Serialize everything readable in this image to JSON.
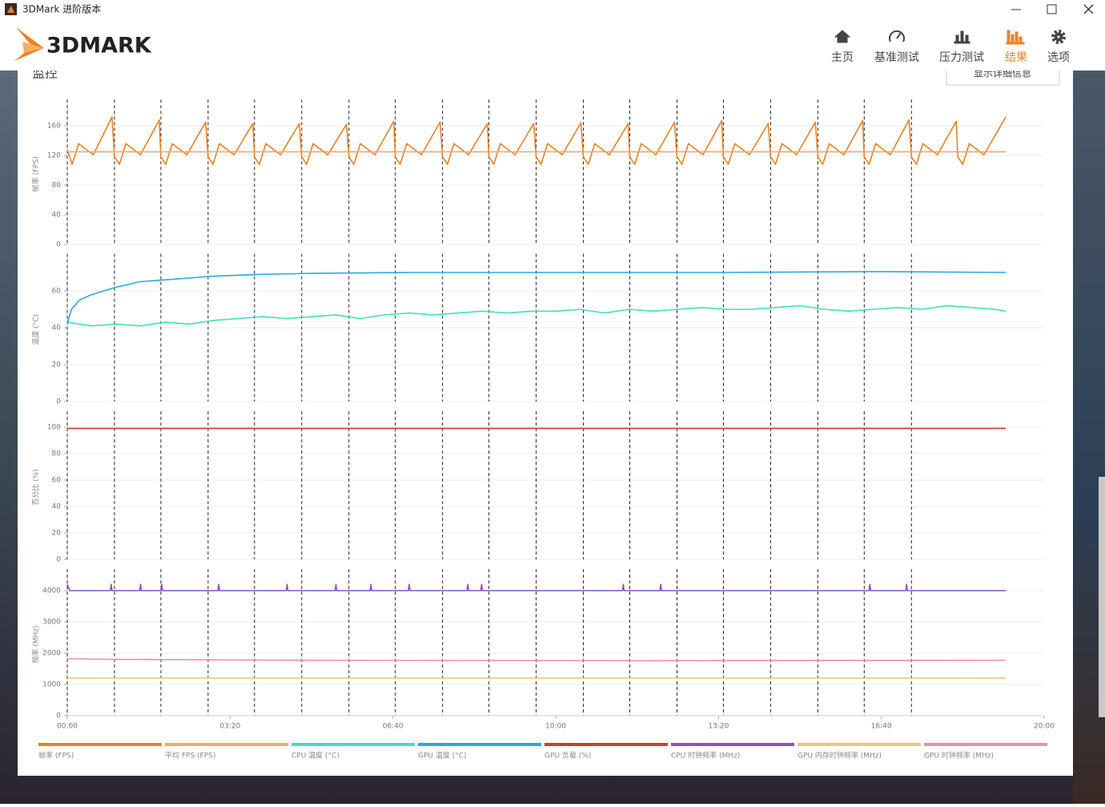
{
  "window": {
    "title": "3DMark 进阶版本"
  },
  "logo": "3DMARK",
  "nav": [
    {
      "label": "主页",
      "active": false
    },
    {
      "label": "基准测试",
      "active": false
    },
    {
      "label": "压力测试",
      "active": false
    },
    {
      "label": "结果",
      "active": true
    },
    {
      "label": "选项",
      "active": false
    }
  ],
  "section": {
    "title": "监控",
    "button": "显示详细信息"
  },
  "events": [
    0,
    58,
    115,
    173,
    230,
    288,
    346,
    403,
    461,
    518,
    576,
    634,
    691,
    749,
    806,
    864,
    922,
    979,
    1037
  ],
  "chart_data": [
    {
      "type": "line",
      "y_label": "帧率 (FPS)",
      "xlim": [
        0,
        1200
      ],
      "ylim": [
        0,
        190
      ],
      "yticks": [
        0,
        40,
        80,
        120,
        160
      ],
      "grid": true,
      "series": [
        {
          "name": "帧率 (FPS)",
          "color": "#e8822a",
          "x": [
            0,
            6,
            14,
            32,
            55,
            58,
            64,
            72,
            90,
            113,
            115,
            121,
            129,
            147,
            170,
            173,
            179,
            187,
            205,
            228,
            230,
            236,
            244,
            262,
            285,
            288,
            294,
            302,
            320,
            343,
            346,
            352,
            360,
            378,
            401,
            403,
            409,
            417,
            435,
            458,
            461,
            467,
            475,
            493,
            516,
            518,
            524,
            532,
            550,
            573,
            576,
            582,
            590,
            608,
            631,
            634,
            640,
            648,
            666,
            689,
            691,
            697,
            705,
            723,
            746,
            749,
            755,
            763,
            781,
            804,
            806,
            812,
            820,
            838,
            861,
            864,
            870,
            878,
            896,
            919,
            922,
            928,
            936,
            954,
            977,
            979,
            985,
            993,
            1011,
            1034,
            1037,
            1043,
            1051,
            1069,
            1092,
            1094,
            1100,
            1108,
            1126,
            1153
          ],
          "values": [
            128,
            108,
            136,
            121,
            172,
            118,
            108,
            136,
            121,
            168,
            118,
            108,
            136,
            121,
            165,
            118,
            108,
            136,
            121,
            163,
            118,
            108,
            136,
            121,
            163,
            118,
            108,
            136,
            121,
            162,
            118,
            108,
            136,
            121,
            166,
            118,
            108,
            136,
            121,
            165,
            118,
            108,
            136,
            121,
            163,
            118,
            108,
            136,
            121,
            163,
            118,
            108,
            136,
            121,
            164,
            118,
            108,
            136,
            121,
            163,
            118,
            108,
            136,
            121,
            165,
            118,
            108,
            136,
            121,
            167,
            118,
            108,
            136,
            121,
            163,
            118,
            108,
            136,
            121,
            165,
            118,
            108,
            136,
            121,
            167,
            118,
            108,
            136,
            121,
            168,
            118,
            108,
            136,
            121,
            166,
            118,
            108,
            136,
            121,
            172
          ]
        },
        {
          "name": "平均 FPS (FPS)",
          "color": "#f2a96a",
          "x": [
            0,
            1153
          ],
          "values": [
            125,
            125
          ]
        }
      ]
    },
    {
      "type": "line",
      "y_label": "温度 (°C)",
      "xlim": [
        0,
        1200
      ],
      "ylim": [
        0,
        78
      ],
      "yticks": [
        0,
        20,
        40,
        60
      ],
      "grid": true,
      "series": [
        {
          "name": "CPU 温度 (°C)",
          "color": "#3ee0bf",
          "x": [
            0,
            30,
            60,
            90,
            120,
            150,
            180,
            210,
            240,
            270,
            300,
            330,
            360,
            390,
            420,
            450,
            480,
            510,
            540,
            570,
            600,
            630,
            660,
            690,
            720,
            750,
            780,
            810,
            840,
            870,
            900,
            930,
            960,
            990,
            1020,
            1050,
            1080,
            1110,
            1140,
            1153
          ],
          "values": [
            43,
            41,
            42,
            41,
            43,
            42,
            44,
            45,
            46,
            45,
            46,
            47,
            45,
            47,
            48,
            47,
            48,
            49,
            48,
            49,
            49,
            50,
            48,
            50,
            49,
            50,
            51,
            50,
            50,
            51,
            52,
            50,
            49,
            50,
            51,
            50,
            52,
            51,
            50,
            49
          ]
        },
        {
          "name": "GPU 温度 (°C)",
          "color": "#2aa9e0",
          "x": [
            0,
            5,
            15,
            30,
            60,
            90,
            120,
            180,
            240,
            300,
            420,
            600,
            800,
            1000,
            1153
          ],
          "values": [
            42,
            50,
            55,
            58,
            62,
            65,
            66,
            68,
            69,
            69.5,
            70,
            70,
            70,
            70.5,
            70
          ]
        }
      ]
    },
    {
      "type": "line",
      "y_label": "百分比 (%)",
      "xlim": [
        0,
        1200
      ],
      "ylim": [
        0,
        109
      ],
      "yticks": [
        0,
        20,
        40,
        60,
        80,
        100
      ],
      "grid": true,
      "series": [
        {
          "name": "GPU 负载 (%)",
          "color": "#d03a3a",
          "x": [
            0,
            1153
          ],
          "values": [
            99,
            99
          ]
        }
      ]
    },
    {
      "type": "line",
      "y_label": "频率 (MHz)",
      "xlim": [
        0,
        1200
      ],
      "ylim": [
        0,
        4560
      ],
      "yticks": [
        0,
        1000,
        2000,
        3000,
        4000
      ],
      "grid": true,
      "xticks": [
        {
          "value": 0,
          "label": "00:00"
        },
        {
          "value": 200,
          "label": "03:20"
        },
        {
          "value": 400,
          "label": "06:40"
        },
        {
          "value": 600,
          "label": "10:00"
        },
        {
          "value": 800,
          "label": "13:20"
        },
        {
          "value": 1000,
          "label": "16:40"
        },
        {
          "value": 1200,
          "label": "20:00"
        }
      ],
      "series": [
        {
          "name": "CPU 时钟频率 (MHz)",
          "color": "#8e4fc9",
          "x": [
            0,
            3,
            53,
            54,
            55,
            89,
            90,
            91,
            115,
            116,
            117,
            185,
            186,
            187,
            269,
            270,
            271,
            329,
            330,
            331,
            372,
            373,
            374,
            419,
            420,
            421,
            491,
            492,
            493,
            508,
            509,
            510,
            682,
            683,
            684,
            728,
            729,
            730,
            985,
            986,
            987,
            1030,
            1031,
            1032,
            1153
          ],
          "values": [
            4200,
            4000,
            4000,
            4200,
            4000,
            4000,
            4200,
            4000,
            4000,
            4200,
            4000,
            4000,
            4200,
            4000,
            4000,
            4200,
            4000,
            4000,
            4200,
            4000,
            4000,
            4200,
            4000,
            4000,
            4200,
            4000,
            4000,
            4200,
            4000,
            4000,
            4200,
            4000,
            4000,
            4200,
            4000,
            4000,
            4200,
            4000,
            4000,
            4200,
            4000,
            4000,
            4200,
            4000,
            4000
          ]
        },
        {
          "name": "GPU 内存时钟频率 (MHz)",
          "color": "#e9c97c",
          "x": [
            0,
            1153
          ],
          "values": [
            1200,
            1200
          ]
        },
        {
          "name": "GPU 时钟频率 (MHz)",
          "color": "#e890a9",
          "x": [
            0,
            60,
            300,
            700,
            1153
          ],
          "values": [
            1820,
            1800,
            1770,
            1760,
            1770
          ]
        }
      ]
    }
  ]
}
